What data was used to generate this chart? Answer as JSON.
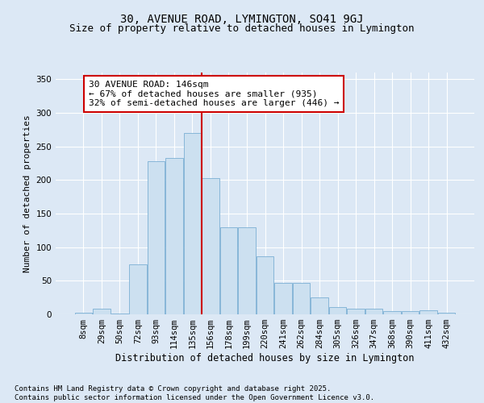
{
  "title": "30, AVENUE ROAD, LYMINGTON, SO41 9GJ",
  "subtitle": "Size of property relative to detached houses in Lymington",
  "xlabel": "Distribution of detached houses by size in Lymington",
  "ylabel": "Number of detached properties",
  "categories": [
    "8sqm",
    "29sqm",
    "50sqm",
    "72sqm",
    "93sqm",
    "114sqm",
    "135sqm",
    "156sqm",
    "178sqm",
    "199sqm",
    "220sqm",
    "241sqm",
    "262sqm",
    "284sqm",
    "305sqm",
    "326sqm",
    "347sqm",
    "368sqm",
    "390sqm",
    "411sqm",
    "432sqm"
  ],
  "values": [
    2,
    8,
    1,
    75,
    228,
    233,
    270,
    203,
    130,
    130,
    87,
    47,
    47,
    25,
    11,
    9,
    8,
    5,
    5,
    6,
    2
  ],
  "bar_color": "#cce0f0",
  "bar_edge_color": "#7bafd4",
  "vline_x_index": 6.5,
  "vline_color": "#cc0000",
  "annotation_text": "30 AVENUE ROAD: 146sqm\n← 67% of detached houses are smaller (935)\n32% of semi-detached houses are larger (446) →",
  "annotation_box_color": "#ffffff",
  "annotation_box_edge_color": "#cc0000",
  "ylim": [
    0,
    360
  ],
  "yticks": [
    0,
    50,
    100,
    150,
    200,
    250,
    300,
    350
  ],
  "background_color": "#dce8f5",
  "plot_bg_color": "#dce8f5",
  "footer_text": "Contains HM Land Registry data © Crown copyright and database right 2025.\nContains public sector information licensed under the Open Government Licence v3.0.",
  "title_fontsize": 10,
  "subtitle_fontsize": 9,
  "xlabel_fontsize": 8.5,
  "ylabel_fontsize": 8,
  "tick_fontsize": 7.5,
  "annotation_fontsize": 8,
  "footer_fontsize": 6.5
}
